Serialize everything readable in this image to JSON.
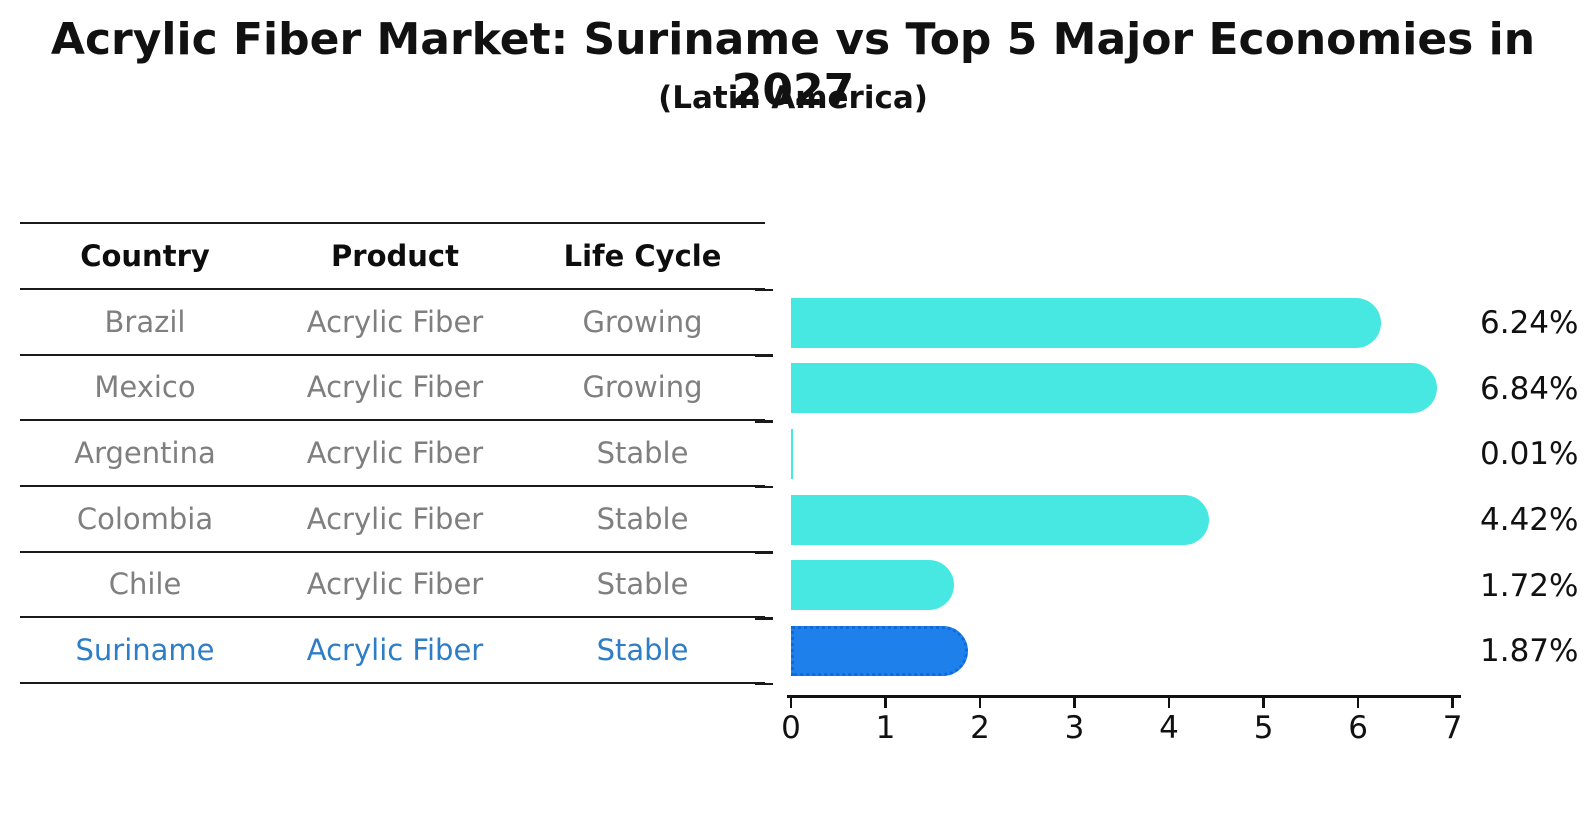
{
  "title": "Acrylic Fiber Market: Suriname vs Top 5 Major Economies in 2027",
  "subtitle": "(Latin America)",
  "table": {
    "headers": [
      "Country",
      "Product",
      "Life Cycle"
    ],
    "rows": [
      {
        "country": "Brazil",
        "product": "Acrylic Fiber",
        "life_cycle": "Growing",
        "highlighted": false
      },
      {
        "country": "Mexico",
        "product": "Acrylic Fiber",
        "life_cycle": "Growing",
        "highlighted": false
      },
      {
        "country": "Argentina",
        "product": "Acrylic Fiber",
        "life_cycle": "Stable",
        "highlighted": false
      },
      {
        "country": "Colombia",
        "product": "Acrylic Fiber",
        "life_cycle": "Stable",
        "highlighted": false
      },
      {
        "country": "Chile",
        "product": "Acrylic Fiber",
        "life_cycle": "Stable",
        "highlighted": false
      },
      {
        "country": "Suriname",
        "product": "Acrylic Fiber",
        "life_cycle": "Stable",
        "highlighted": true
      }
    ]
  },
  "chart_data": {
    "type": "bar",
    "orientation": "horizontal",
    "title": "Acrylic Fiber Market: Suriname vs Top 5 Major Economies in 2027 (Latin America)",
    "categories": [
      "Brazil",
      "Mexico",
      "Argentina",
      "Colombia",
      "Chile",
      "Suriname"
    ],
    "values": [
      6.24,
      6.84,
      0.01,
      4.42,
      1.72,
      1.87
    ],
    "value_labels": [
      "6.24%",
      "6.84%",
      "0.01%",
      "4.42%",
      "1.72%",
      "1.87%"
    ],
    "x_ticks": [
      0,
      1,
      2,
      3,
      4,
      5,
      6,
      7
    ],
    "xlim": [
      0,
      7.08
    ],
    "grid": false,
    "legend": "none",
    "bar_color": "#46e8e1",
    "highlight_index": 5,
    "highlight_color": "#1e80eb",
    "highlight_border_color": "#0f6bd9"
  },
  "colors": {
    "title_text": "#111111",
    "header_text": "#0d0d0d",
    "row_text": "#7f7f7f",
    "highlight_text": "#2e7dc7",
    "axis": "#111111",
    "rule": "#1a1a1a"
  }
}
